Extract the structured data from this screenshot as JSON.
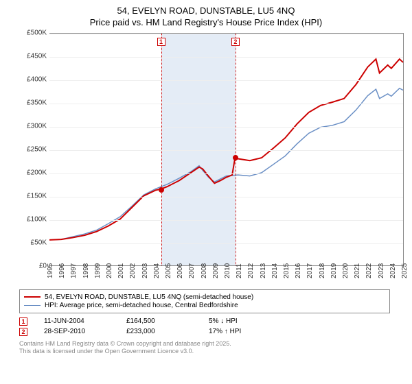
{
  "title_line1": "54, EVELYN ROAD, DUNSTABLE, LU5 4NQ",
  "title_line2": "Price paid vs. HM Land Registry's House Price Index (HPI)",
  "chart": {
    "type": "line",
    "background_color": "#ffffff",
    "grid_color": "#eeeeee",
    "border_color": "#888888",
    "xlim": [
      1995,
      2025
    ],
    "ylim": [
      0,
      500000
    ],
    "ytick_step": 50000,
    "y_ticks": [
      "£0",
      "£50K",
      "£100K",
      "£150K",
      "£200K",
      "£250K",
      "£300K",
      "£350K",
      "£400K",
      "£450K",
      "£500K"
    ],
    "x_ticks": [
      "1995",
      "1996",
      "1997",
      "1998",
      "1999",
      "2000",
      "2001",
      "2002",
      "2003",
      "2004",
      "2005",
      "2006",
      "2007",
      "2008",
      "2009",
      "2010",
      "2011",
      "2012",
      "2013",
      "2014",
      "2015",
      "2016",
      "2017",
      "2018",
      "2019",
      "2020",
      "2021",
      "2022",
      "2023",
      "2024",
      "2025"
    ],
    "tick_fontsize": 10,
    "shade_band": {
      "x_from": 2004.45,
      "x_to": 2010.75,
      "color": "#e4ecf6"
    },
    "vlines": [
      {
        "x": 2004.45,
        "color": "#cc0000",
        "dash": "dotted"
      },
      {
        "x": 2010.75,
        "color": "#cc0000",
        "dash": "dotted"
      }
    ],
    "marker_boxes": [
      {
        "x": 2004.45,
        "label": "1",
        "color": "#cc0000"
      },
      {
        "x": 2010.75,
        "label": "2",
        "color": "#cc0000"
      }
    ],
    "series": [
      {
        "name": "price_paid",
        "label": "54, EVELYN ROAD, DUNSTABLE, LU5 4NQ (semi-detached house)",
        "color": "#cc0000",
        "line_width": 2,
        "points": [
          [
            1995,
            55000
          ],
          [
            1996,
            56000
          ],
          [
            1997,
            60000
          ],
          [
            1998,
            65000
          ],
          [
            1999,
            73000
          ],
          [
            2000,
            85000
          ],
          [
            2001,
            100000
          ],
          [
            2002,
            125000
          ],
          [
            2003,
            150000
          ],
          [
            2004,
            162000
          ],
          [
            2004.45,
            164500
          ],
          [
            2005,
            170000
          ],
          [
            2006,
            183000
          ],
          [
            2007,
            200000
          ],
          [
            2007.7,
            212000
          ],
          [
            2008,
            208000
          ],
          [
            2008.5,
            192000
          ],
          [
            2009,
            177000
          ],
          [
            2009.5,
            183000
          ],
          [
            2010,
            190000
          ],
          [
            2010.5,
            195000
          ],
          [
            2010.75,
            233000
          ],
          [
            2011,
            230000
          ],
          [
            2012,
            226000
          ],
          [
            2013,
            232000
          ],
          [
            2014,
            253000
          ],
          [
            2015,
            275000
          ],
          [
            2016,
            305000
          ],
          [
            2017,
            330000
          ],
          [
            2018,
            345000
          ],
          [
            2019,
            352000
          ],
          [
            2020,
            360000
          ],
          [
            2021,
            390000
          ],
          [
            2022,
            428000
          ],
          [
            2022.7,
            445000
          ],
          [
            2023,
            415000
          ],
          [
            2023.7,
            432000
          ],
          [
            2024,
            425000
          ],
          [
            2024.7,
            445000
          ],
          [
            2025,
            438000
          ]
        ],
        "highlight_points": [
          {
            "x": 2004.45,
            "y": 164500
          },
          {
            "x": 2010.75,
            "y": 233000
          }
        ]
      },
      {
        "name": "hpi",
        "label": "HPI: Average price, semi-detached house, Central Bedfordshire",
        "color": "#6a8fc5",
        "line_width": 1.5,
        "points": [
          [
            1995,
            55000
          ],
          [
            1996,
            56000
          ],
          [
            1997,
            62000
          ],
          [
            1998,
            68000
          ],
          [
            1999,
            76000
          ],
          [
            2000,
            90000
          ],
          [
            2001,
            105000
          ],
          [
            2002,
            128000
          ],
          [
            2003,
            152000
          ],
          [
            2004,
            165000
          ],
          [
            2005,
            175000
          ],
          [
            2006,
            188000
          ],
          [
            2007,
            202000
          ],
          [
            2007.7,
            215000
          ],
          [
            2008,
            205000
          ],
          [
            2008.5,
            190000
          ],
          [
            2009,
            180000
          ],
          [
            2010,
            193000
          ],
          [
            2011,
            195000
          ],
          [
            2012,
            193000
          ],
          [
            2013,
            200000
          ],
          [
            2014,
            218000
          ],
          [
            2015,
            236000
          ],
          [
            2016,
            262000
          ],
          [
            2017,
            285000
          ],
          [
            2018,
            298000
          ],
          [
            2019,
            302000
          ],
          [
            2020,
            310000
          ],
          [
            2021,
            335000
          ],
          [
            2022,
            366000
          ],
          [
            2022.7,
            380000
          ],
          [
            2023,
            360000
          ],
          [
            2023.7,
            370000
          ],
          [
            2024,
            365000
          ],
          [
            2024.7,
            382000
          ],
          [
            2025,
            378000
          ]
        ]
      }
    ]
  },
  "legend": {
    "border_color": "#888888",
    "fontsize": 10,
    "items": [
      {
        "color": "#cc0000",
        "width": 2,
        "label": "54, EVELYN ROAD, DUNSTABLE, LU5 4NQ (semi-detached house)"
      },
      {
        "color": "#6a8fc5",
        "width": 1.5,
        "label": "HPI: Average price, semi-detached house, Central Bedfordshire"
      }
    ]
  },
  "transactions": [
    {
      "marker": "1",
      "date": "11-JUN-2004",
      "price": "£164,500",
      "delta": "5% ↓ HPI"
    },
    {
      "marker": "2",
      "date": "28-SEP-2010",
      "price": "£233,000",
      "delta": "17% ↑ HPI"
    }
  ],
  "footer": {
    "line1": "Contains HM Land Registry data © Crown copyright and database right 2025.",
    "line2": "This data is licensed under the Open Government Licence v3.0.",
    "color": "#888888",
    "fontsize": 9
  }
}
